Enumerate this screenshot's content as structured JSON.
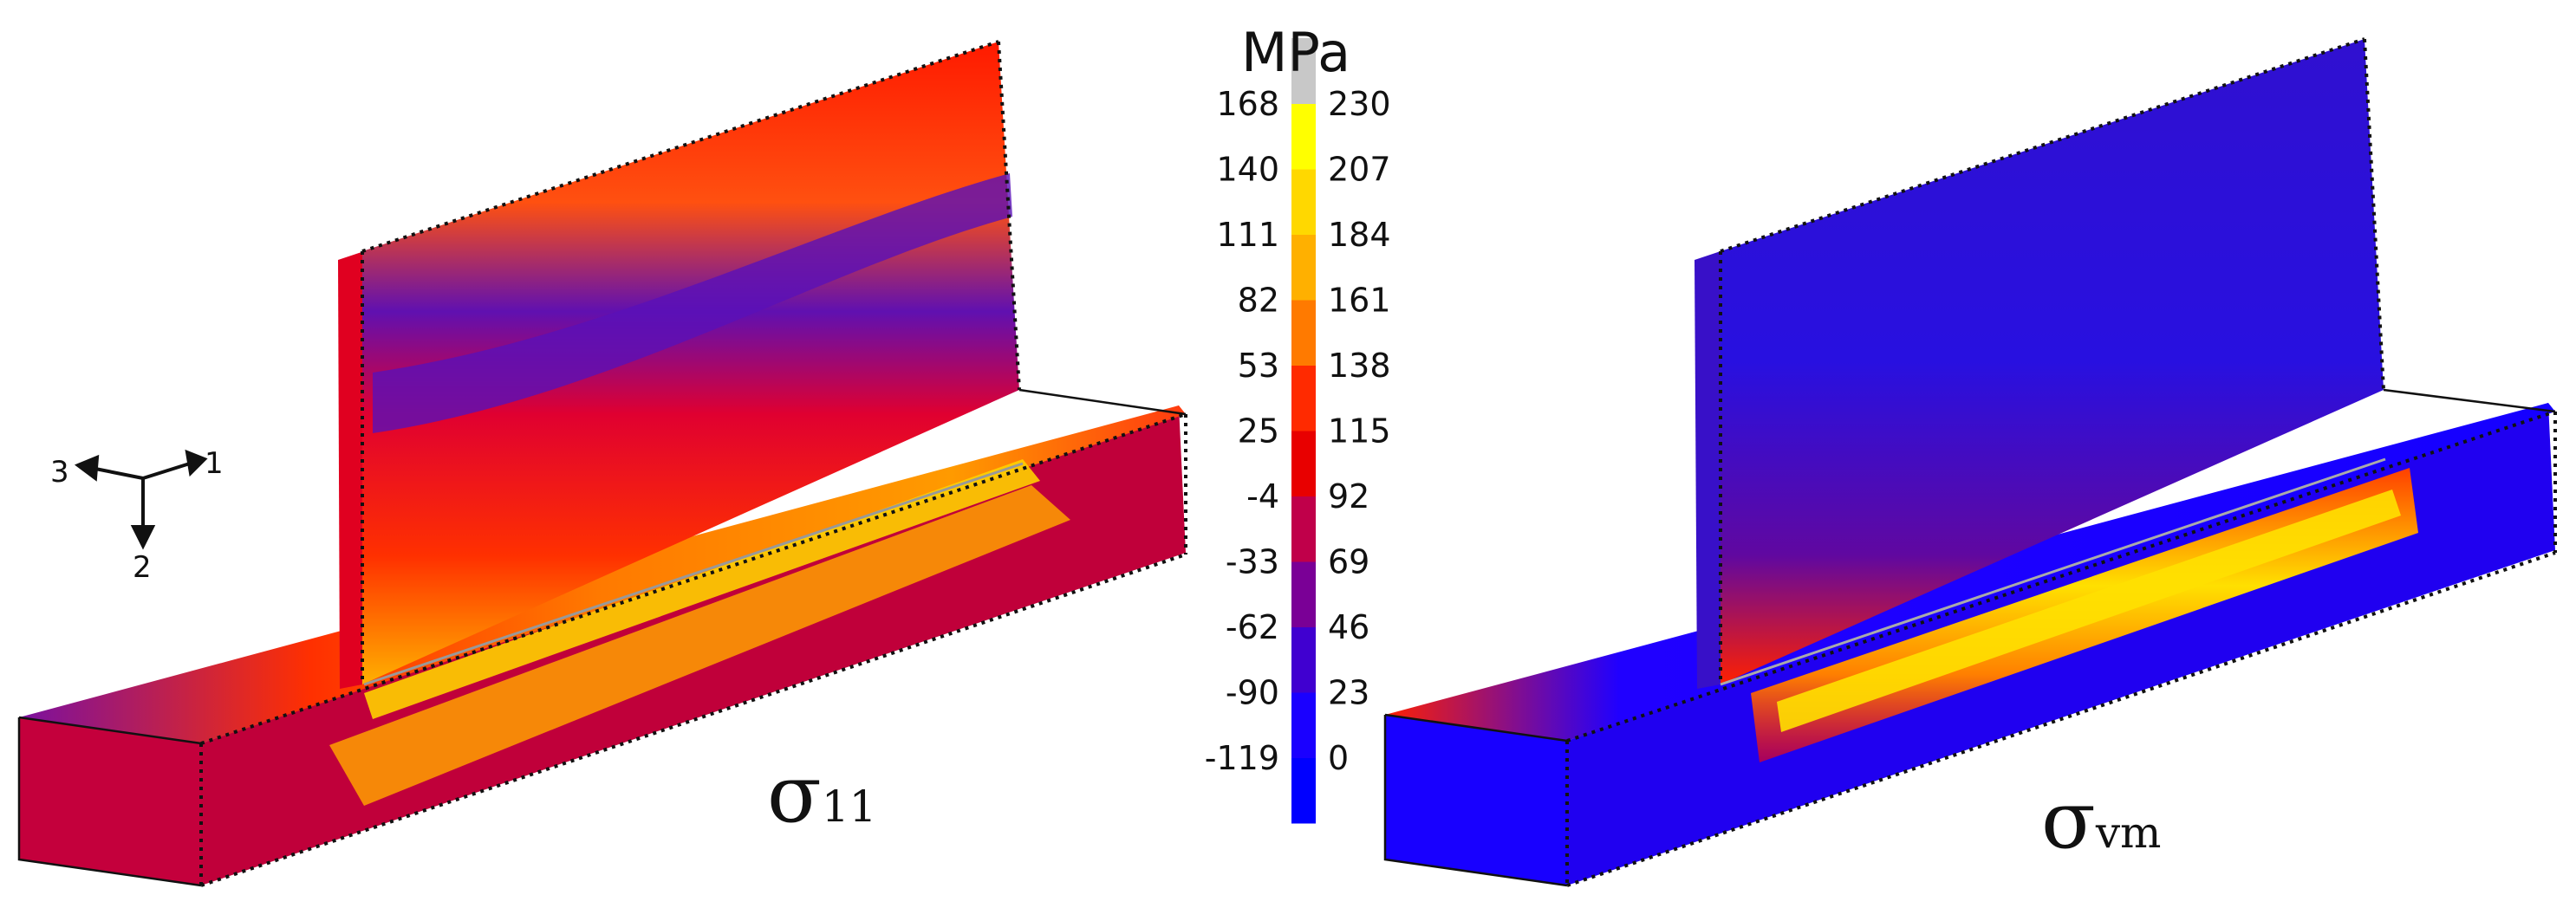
{
  "legend": {
    "unit": "MPa",
    "left_ticks": [
      "168",
      "140",
      "111",
      "82",
      "53",
      "25",
      "-4",
      "-33",
      "-62",
      "-90",
      "-119"
    ],
    "right_ticks": [
      "230",
      "207",
      "184",
      "161",
      "138",
      "115",
      "92",
      "69",
      "46",
      "23",
      "0"
    ],
    "colors": [
      "#c8c8c8",
      "#ffff00",
      "#ffd800",
      "#ffb000",
      "#ff7a00",
      "#ff2a00",
      "#e80000",
      "#c0004a",
      "#7a0096",
      "#4000d0",
      "#1a00ff",
      "#0000ff",
      "#707070"
    ]
  },
  "axes": {
    "x1": "1",
    "x2": "2",
    "x3": "3"
  },
  "plots": [
    {
      "symbol": "σ",
      "subscript": "11"
    },
    {
      "symbol": "σ",
      "subscript": "vm"
    }
  ]
}
